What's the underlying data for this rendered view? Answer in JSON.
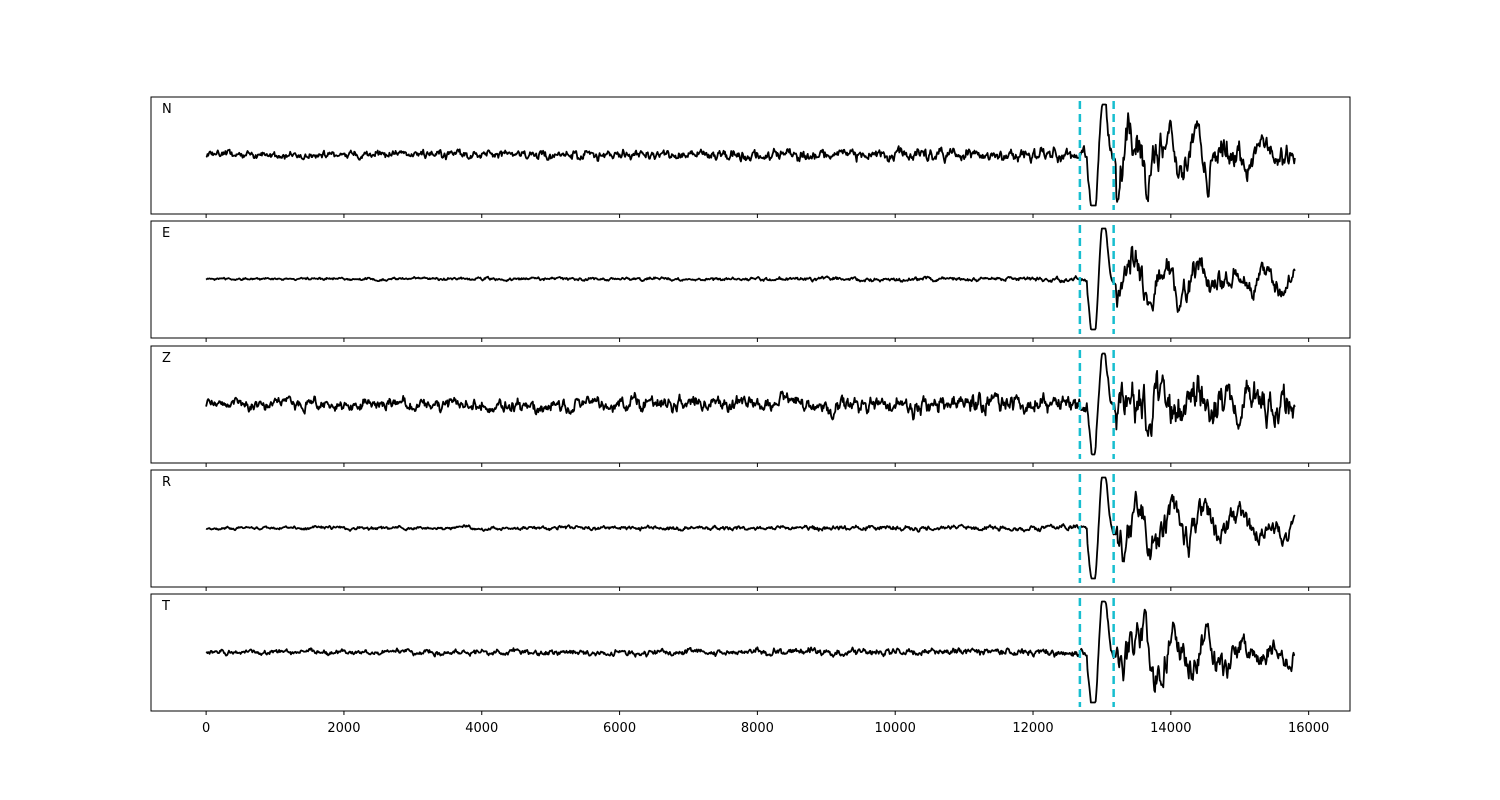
{
  "chart_data": {
    "type": "line",
    "panels": [
      {
        "label": "N",
        "amplitude": 0.55,
        "seed": 11,
        "event_amp": 1.0
      },
      {
        "label": "E",
        "amplitude": 0.18,
        "seed": 23,
        "event_amp": 1.0
      },
      {
        "label": "Z",
        "amplitude": 0.85,
        "seed": 37,
        "event_amp": 0.9
      },
      {
        "label": "R",
        "amplitude": 0.22,
        "seed": 41,
        "event_amp": 1.0
      },
      {
        "label": "T",
        "amplitude": 0.35,
        "seed": 53,
        "event_amp": 1.0
      }
    ],
    "x_range": [
      0,
      15800
    ],
    "xlim": [
      -800,
      16600
    ],
    "xticks": [
      0,
      2000,
      4000,
      6000,
      8000,
      10000,
      12000,
      14000,
      16000
    ],
    "picks": [
      12680,
      13170
    ],
    "colors": {
      "trace": "#000000",
      "pick": "#17becf"
    },
    "grid": false
  }
}
